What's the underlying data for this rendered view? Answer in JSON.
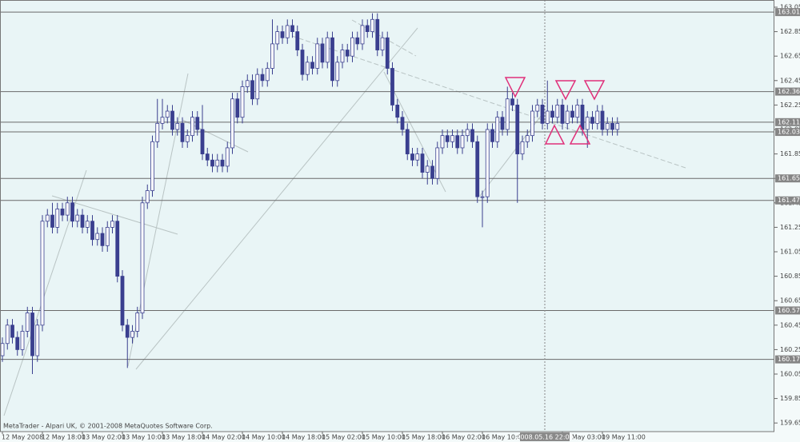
{
  "chart_data": {
    "type": "candlestick",
    "footer": "MetaTrader - Alpari UK, © 2001-2008 MetaQuotes Software Corp.",
    "crosshair_label": "2008.05.16 22:00",
    "categories": [
      "12 May 2008",
      null,
      null,
      null,
      null,
      null,
      null,
      null,
      "12 May 18:00",
      null,
      null,
      null,
      null,
      null,
      null,
      null,
      "13 May 02:00",
      null,
      null,
      null,
      null,
      null,
      null,
      null,
      "13 May 10:00",
      null,
      null,
      null,
      null,
      null,
      null,
      null,
      "13 May 18:00",
      null,
      null,
      null,
      null,
      null,
      null,
      null,
      "14 May 02:00",
      null,
      null,
      null,
      null,
      null,
      null,
      null,
      "14 May 10:00",
      null,
      null,
      null,
      null,
      null,
      null,
      null,
      "14 May 18:00",
      null,
      null,
      null,
      null,
      null,
      null,
      null,
      "15 May 02:00",
      null,
      null,
      null,
      null,
      null,
      null,
      null,
      "15 May 10:00",
      null,
      null,
      null,
      null,
      null,
      null,
      null,
      "15 May 18:00",
      null,
      null,
      null,
      null,
      null,
      null,
      null,
      "16 May 02:00",
      null,
      null,
      null,
      null,
      null,
      null,
      null,
      "16 May 10:00",
      null,
      null,
      null,
      null,
      null,
      null,
      null,
      null,
      null,
      null,
      null,
      null,
      null,
      null,
      null,
      "19 May 03:00",
      null,
      null,
      null,
      null,
      null,
      null,
      null,
      "19 May 11:00",
      null,
      null,
      null
    ],
    "open": [
      160.2,
      160.3,
      160.45,
      160.35,
      160.25,
      160.4,
      160.55,
      160.2,
      160.45,
      161.3,
      161.35,
      161.25,
      161.4,
      161.35,
      161.45,
      161.3,
      161.35,
      161.25,
      161.3,
      161.15,
      161.2,
      161.1,
      161.25,
      161.3,
      160.85,
      160.45,
      160.35,
      160.4,
      160.55,
      161.45,
      161.55,
      161.95,
      162.1,
      162.15,
      162.2,
      162.05,
      162.1,
      161.95,
      162.0,
      162.15,
      162.05,
      161.85,
      161.8,
      161.75,
      161.8,
      161.75,
      161.9,
      162.3,
      162.15,
      162.4,
      162.45,
      162.3,
      162.5,
      162.45,
      162.55,
      162.75,
      162.85,
      162.8,
      162.9,
      162.85,
      162.7,
      162.5,
      162.6,
      162.55,
      162.75,
      162.6,
      162.8,
      162.45,
      162.6,
      162.7,
      162.65,
      162.8,
      162.75,
      162.9,
      162.85,
      162.95,
      162.7,
      162.8,
      162.55,
      162.25,
      162.15,
      162.05,
      161.85,
      161.8,
      161.85,
      161.7,
      161.75,
      161.65,
      161.9,
      162.0,
      161.95,
      162.0,
      161.9,
      162.0,
      162.05,
      161.95,
      161.5,
      161.5,
      162.05,
      161.95,
      162.15,
      162.05,
      162.3,
      162.25,
      161.85,
      161.95,
      162.0,
      162.2,
      162.25,
      162.1,
      162.2,
      162.15,
      162.25,
      162.1,
      162.2,
      162.15,
      162.25,
      162.05,
      162.15,
      162.1,
      162.2,
      162.05,
      162.1,
      162.05
    ],
    "high": [
      160.35,
      160.5,
      160.5,
      160.4,
      160.45,
      160.6,
      160.6,
      160.5,
      161.35,
      161.4,
      161.45,
      161.45,
      161.45,
      161.5,
      161.5,
      161.4,
      161.4,
      161.35,
      161.35,
      161.25,
      161.25,
      161.3,
      161.35,
      161.35,
      160.9,
      160.5,
      160.45,
      160.6,
      161.5,
      161.6,
      162.0,
      162.3,
      162.3,
      162.25,
      162.25,
      162.15,
      162.15,
      162.05,
      162.2,
      162.2,
      162.25,
      161.9,
      161.85,
      161.85,
      161.85,
      161.95,
      162.35,
      162.35,
      162.45,
      162.5,
      162.5,
      162.55,
      162.55,
      162.6,
      162.95,
      162.9,
      162.9,
      162.95,
      162.95,
      162.9,
      162.75,
      162.65,
      162.65,
      162.8,
      162.8,
      162.85,
      162.85,
      162.65,
      162.75,
      162.75,
      162.85,
      162.85,
      162.95,
      162.95,
      163.0,
      163.0,
      162.85,
      162.85,
      162.6,
      162.3,
      162.2,
      162.1,
      161.9,
      161.9,
      161.9,
      161.8,
      161.8,
      161.95,
      162.05,
      162.05,
      162.05,
      162.05,
      162.05,
      162.1,
      162.1,
      162.0,
      161.55,
      162.1,
      162.1,
      162.2,
      162.2,
      162.4,
      162.35,
      162.3,
      162.0,
      162.05,
      162.25,
      162.3,
      162.3,
      162.45,
      162.25,
      162.3,
      162.3,
      162.25,
      162.25,
      162.3,
      162.3,
      162.2,
      162.2,
      162.25,
      162.25,
      162.15,
      162.15,
      162.15
    ],
    "low": [
      160.15,
      160.25,
      160.3,
      160.2,
      160.2,
      160.35,
      160.05,
      160.15,
      160.4,
      161.25,
      161.2,
      161.2,
      161.3,
      161.3,
      161.25,
      161.25,
      161.2,
      161.2,
      161.1,
      161.1,
      161.05,
      161.05,
      161.2,
      160.8,
      160.4,
      160.1,
      160.3,
      160.35,
      160.5,
      161.4,
      161.5,
      161.9,
      162.05,
      162.1,
      162.0,
      162.0,
      161.9,
      161.9,
      161.95,
      162.0,
      161.8,
      161.75,
      161.7,
      161.7,
      161.7,
      161.7,
      161.85,
      162.1,
      162.1,
      162.35,
      162.25,
      162.25,
      162.4,
      162.4,
      162.5,
      162.7,
      162.75,
      162.75,
      162.8,
      162.65,
      162.45,
      162.45,
      162.5,
      162.5,
      162.55,
      162.55,
      162.4,
      162.4,
      162.55,
      162.6,
      162.6,
      162.7,
      162.7,
      162.8,
      162.8,
      162.65,
      162.65,
      162.5,
      162.2,
      162.1,
      162.0,
      161.8,
      161.75,
      161.75,
      161.65,
      161.6,
      161.6,
      161.6,
      161.85,
      161.9,
      161.9,
      161.85,
      161.85,
      161.95,
      161.9,
      161.45,
      161.25,
      161.45,
      161.9,
      161.9,
      162.0,
      162.0,
      162.2,
      161.45,
      161.8,
      161.9,
      161.95,
      162.15,
      162.05,
      162.05,
      162.1,
      162.1,
      162.05,
      162.05,
      162.1,
      162.1,
      162.0,
      161.9,
      162.05,
      162.05,
      162.0,
      162.0,
      162.0,
      162.0
    ],
    "close": [
      160.3,
      160.45,
      160.35,
      160.25,
      160.4,
      160.55,
      160.2,
      160.45,
      161.3,
      161.35,
      161.25,
      161.4,
      161.35,
      161.45,
      161.3,
      161.35,
      161.25,
      161.3,
      161.15,
      161.2,
      161.1,
      161.25,
      161.3,
      160.85,
      160.45,
      160.35,
      160.4,
      160.55,
      161.45,
      161.55,
      161.95,
      162.1,
      162.15,
      162.2,
      162.05,
      162.1,
      161.95,
      162.0,
      162.15,
      162.05,
      161.85,
      161.8,
      161.75,
      161.8,
      161.75,
      161.9,
      162.3,
      162.15,
      162.4,
      162.45,
      162.3,
      162.5,
      162.45,
      162.55,
      162.75,
      162.85,
      162.8,
      162.9,
      162.85,
      162.7,
      162.5,
      162.6,
      162.55,
      162.75,
      162.6,
      162.8,
      162.45,
      162.6,
      162.7,
      162.65,
      162.8,
      162.75,
      162.9,
      162.85,
      162.95,
      162.7,
      162.8,
      162.55,
      162.25,
      162.15,
      162.05,
      161.85,
      161.8,
      161.85,
      161.7,
      161.75,
      161.65,
      161.9,
      162.0,
      161.95,
      162.0,
      161.9,
      162.0,
      162.05,
      161.95,
      161.5,
      161.5,
      162.05,
      161.95,
      162.15,
      162.05,
      162.3,
      162.25,
      161.85,
      161.95,
      162.0,
      162.2,
      162.25,
      162.1,
      162.2,
      162.15,
      162.25,
      162.1,
      162.2,
      162.15,
      162.25,
      162.05,
      162.15,
      162.1,
      162.2,
      162.05,
      162.1,
      162.05,
      162.1
    ],
    "levels": [
      163.01,
      162.36,
      162.11,
      162.03,
      161.65,
      161.47,
      160.57,
      160.17
    ],
    "ylim": [
      159.6,
      163.05
    ],
    "yticks": [
      159.65,
      159.85,
      160.05,
      160.25,
      160.45,
      160.65,
      160.85,
      161.05,
      161.25,
      161.45,
      161.65,
      161.85,
      162.05,
      162.25,
      162.45,
      162.65,
      162.85,
      163.05
    ],
    "up_color": "#ffffff",
    "down_color": "#3a3f8f",
    "outline_color": "#3a3f8f",
    "background": "#e9f5f6"
  }
}
